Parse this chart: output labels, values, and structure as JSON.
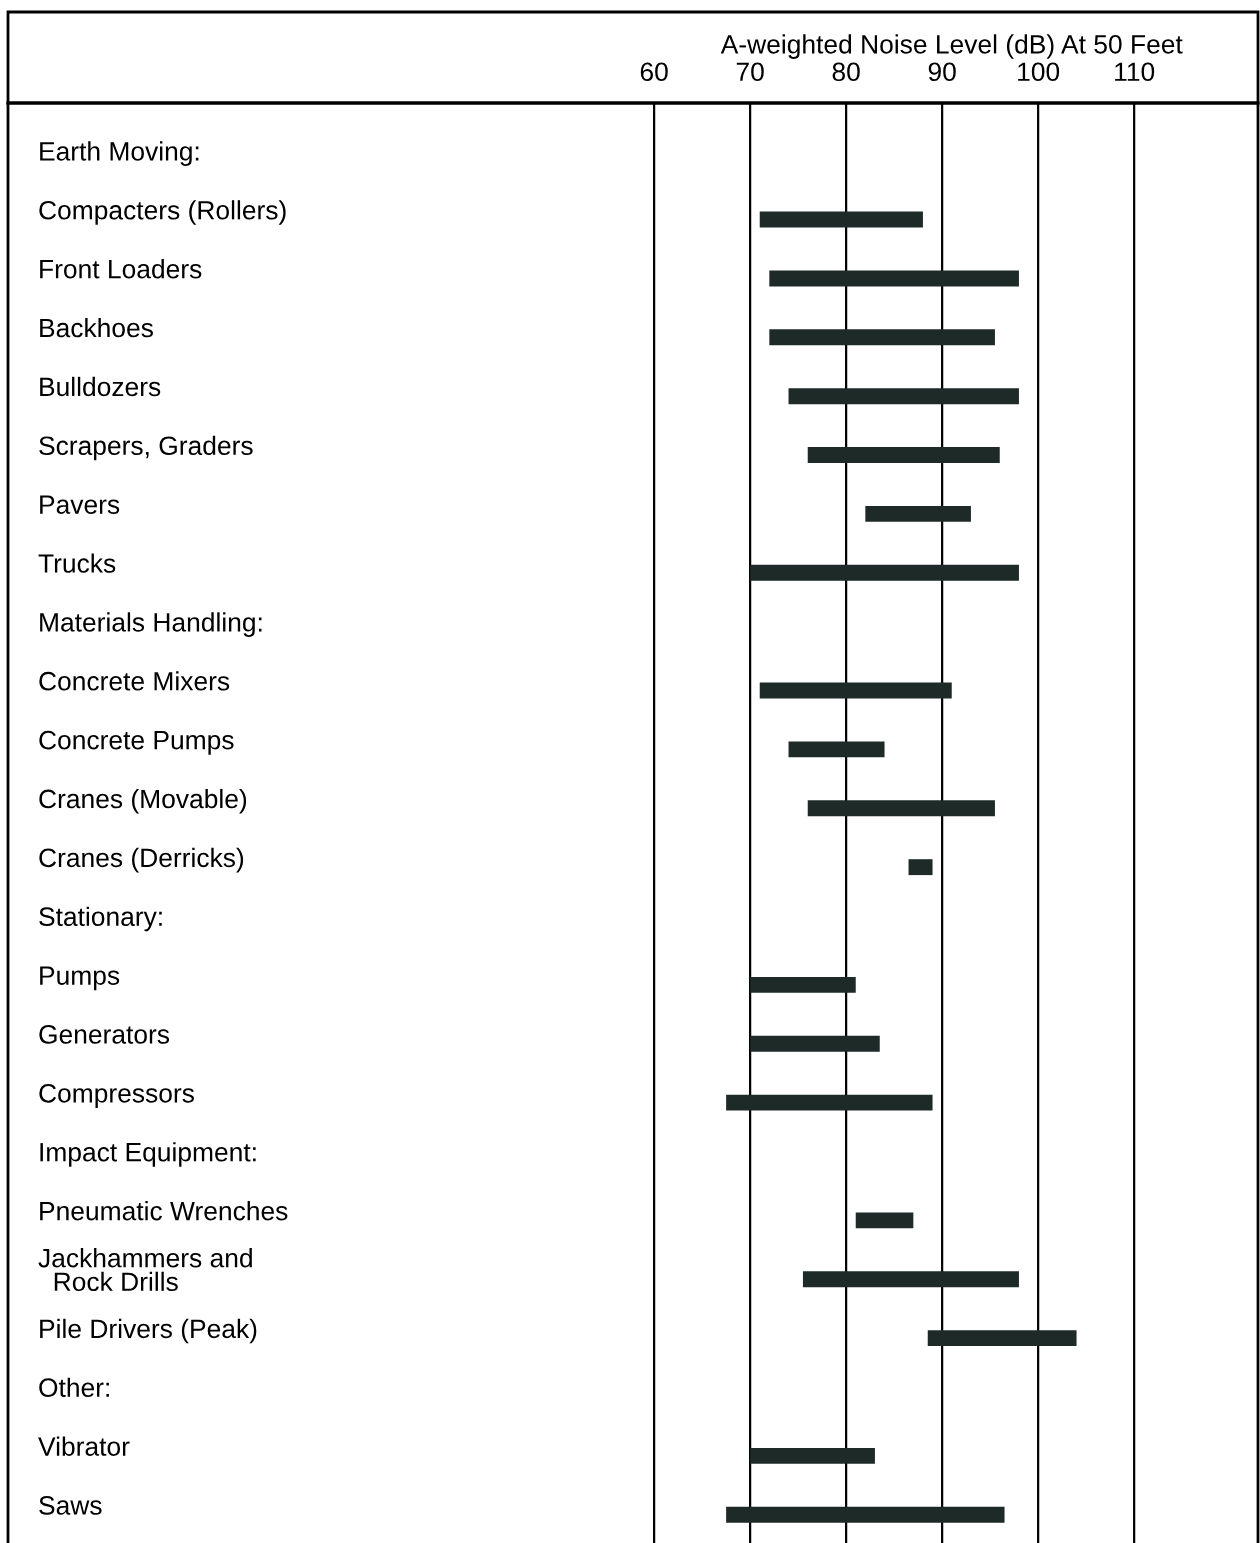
{
  "chart_data": {
    "type": "bar",
    "orientation": "horizontal",
    "xlabel": "A-weighted Noise Level (dB) At 50 Feet",
    "categories": [
      null,
      "Compacters (Rollers)",
      "Front Loaders",
      "Backhoes",
      "Bulldozers",
      "Scrapers, Graders",
      "Pavers",
      "Trucks",
      null,
      "Concrete Mixers",
      "Concrete Pumps",
      "Cranes (Movable)",
      "Cranes (Derricks)",
      null,
      "Pumps",
      "Generators",
      "Compressors",
      null,
      "Pneumatic Wrenches",
      "Jackhammers and\n  Rock Drills",
      "Pile Drivers (Peak)",
      null,
      "Vibrator",
      "Saws"
    ],
    "annotations": [
      "Earth Moving:",
      "Materials Handling:",
      "Stationary:",
      "Impact Equipment:",
      "Other:"
    ],
    "base": [
      null,
      71,
      72,
      72,
      74,
      76,
      82,
      70,
      null,
      71,
      74,
      76,
      86.5,
      null,
      70,
      70,
      67.5,
      null,
      81,
      75.5,
      88.5,
      null,
      70,
      67.5
    ],
    "values": [
      null,
      17,
      26,
      23.5,
      24,
      20,
      11,
      28,
      null,
      20,
      10,
      19.5,
      2.5,
      null,
      11,
      13.5,
      21.5,
      null,
      6,
      22.5,
      15.5,
      null,
      13,
      29
    ],
    "color": "#1e2a28",
    "xlim": [
      -7.3,
      122.9
    ],
    "xticks": [
      60,
      70,
      80,
      90,
      100,
      110
    ],
    "grid": "x"
  }
}
